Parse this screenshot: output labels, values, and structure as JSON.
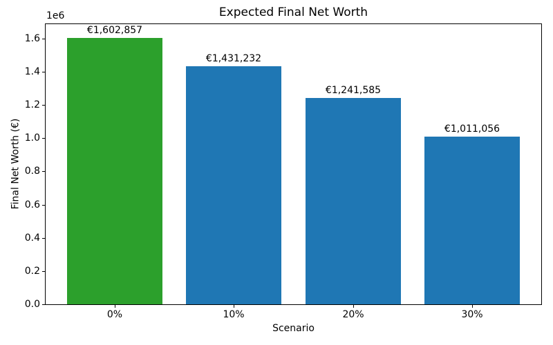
{
  "chart_data": {
    "type": "bar",
    "title": "Expected Final Net Worth",
    "xlabel": "Scenario",
    "ylabel": "Final Net Worth (€)",
    "categories": [
      "0%",
      "10%",
      "20%",
      "30%"
    ],
    "values": [
      1602857,
      1431232,
      1241585,
      1011056
    ],
    "bar_labels": [
      "€1,602,857",
      "€1,431,232",
      "€1,241,585",
      "€1,011,056"
    ],
    "bar_colors": [
      "#2ca02c",
      "#1f77b4",
      "#1f77b4",
      "#1f77b4"
    ],
    "highlight_color": "#2ca02c",
    "default_bar_color": "#1f77b4",
    "ylim": [
      0,
      1695000
    ],
    "yticks": [
      0,
      200000,
      400000,
      600000,
      800000,
      1000000,
      1200000,
      1400000,
      1600000
    ],
    "ytick_labels": [
      "0.0",
      "0.2",
      "0.4",
      "0.6",
      "0.8",
      "1.0",
      "1.2",
      "1.4",
      "1.6"
    ],
    "y_offset_text": "1e6",
    "grid": false,
    "legend": null,
    "background_color": "#ffffff",
    "spine_color": "#000000"
  }
}
